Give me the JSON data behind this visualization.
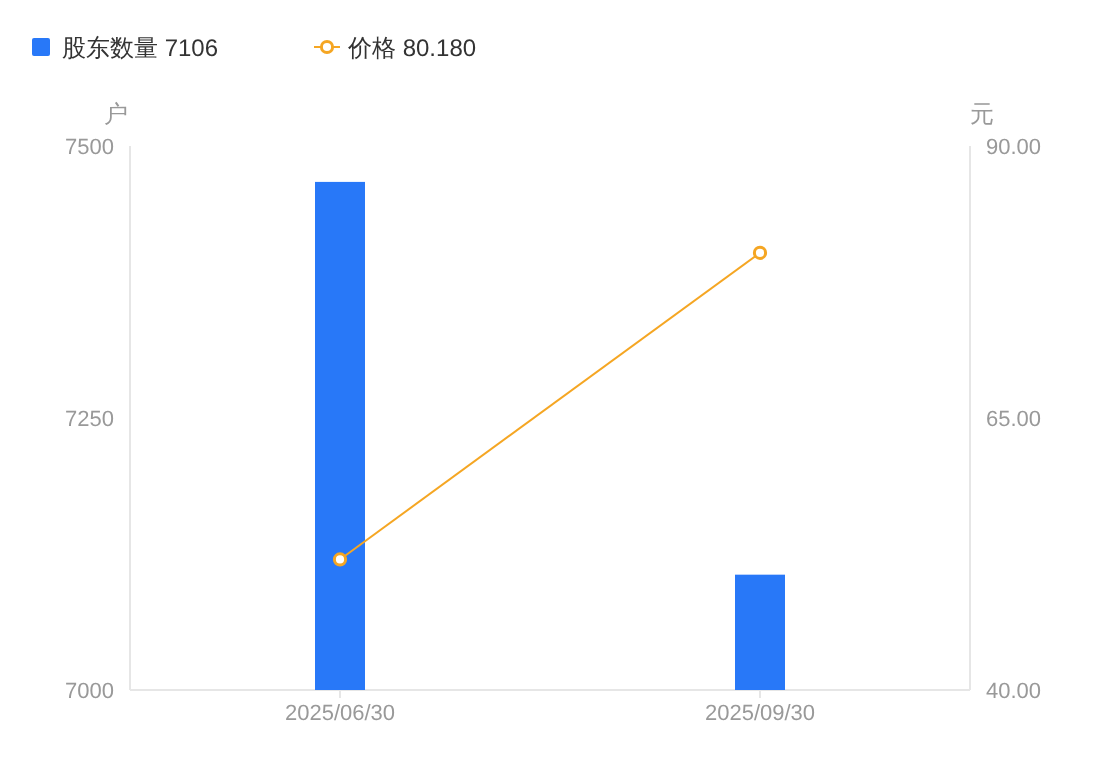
{
  "chart_data": {
    "type": "bar",
    "categories": [
      "2025/06/30",
      "2025/09/30"
    ],
    "series": [
      {
        "name": "股东数量 7106",
        "color": "#2878f8",
        "values": [
          7467,
          7106
        ]
      },
      {
        "name": "价格 80.180",
        "type": "line",
        "axis": "y2",
        "color": "#f5a623",
        "values": [
          52,
          80.18
        ],
        "marker": "circle"
      }
    ],
    "ylabel": "户",
    "y2label": "元",
    "ylim": [
      7000,
      7500
    ],
    "yticks": [
      7000,
      7250,
      7500
    ],
    "y2lim": [
      40,
      90
    ],
    "y2ticks": [
      {
        "value": 40,
        "label": "40.00"
      },
      {
        "value": 65,
        "label": "65.00"
      },
      {
        "value": 90,
        "label": "90.00"
      }
    ],
    "grid": false,
    "legend": "top left"
  }
}
